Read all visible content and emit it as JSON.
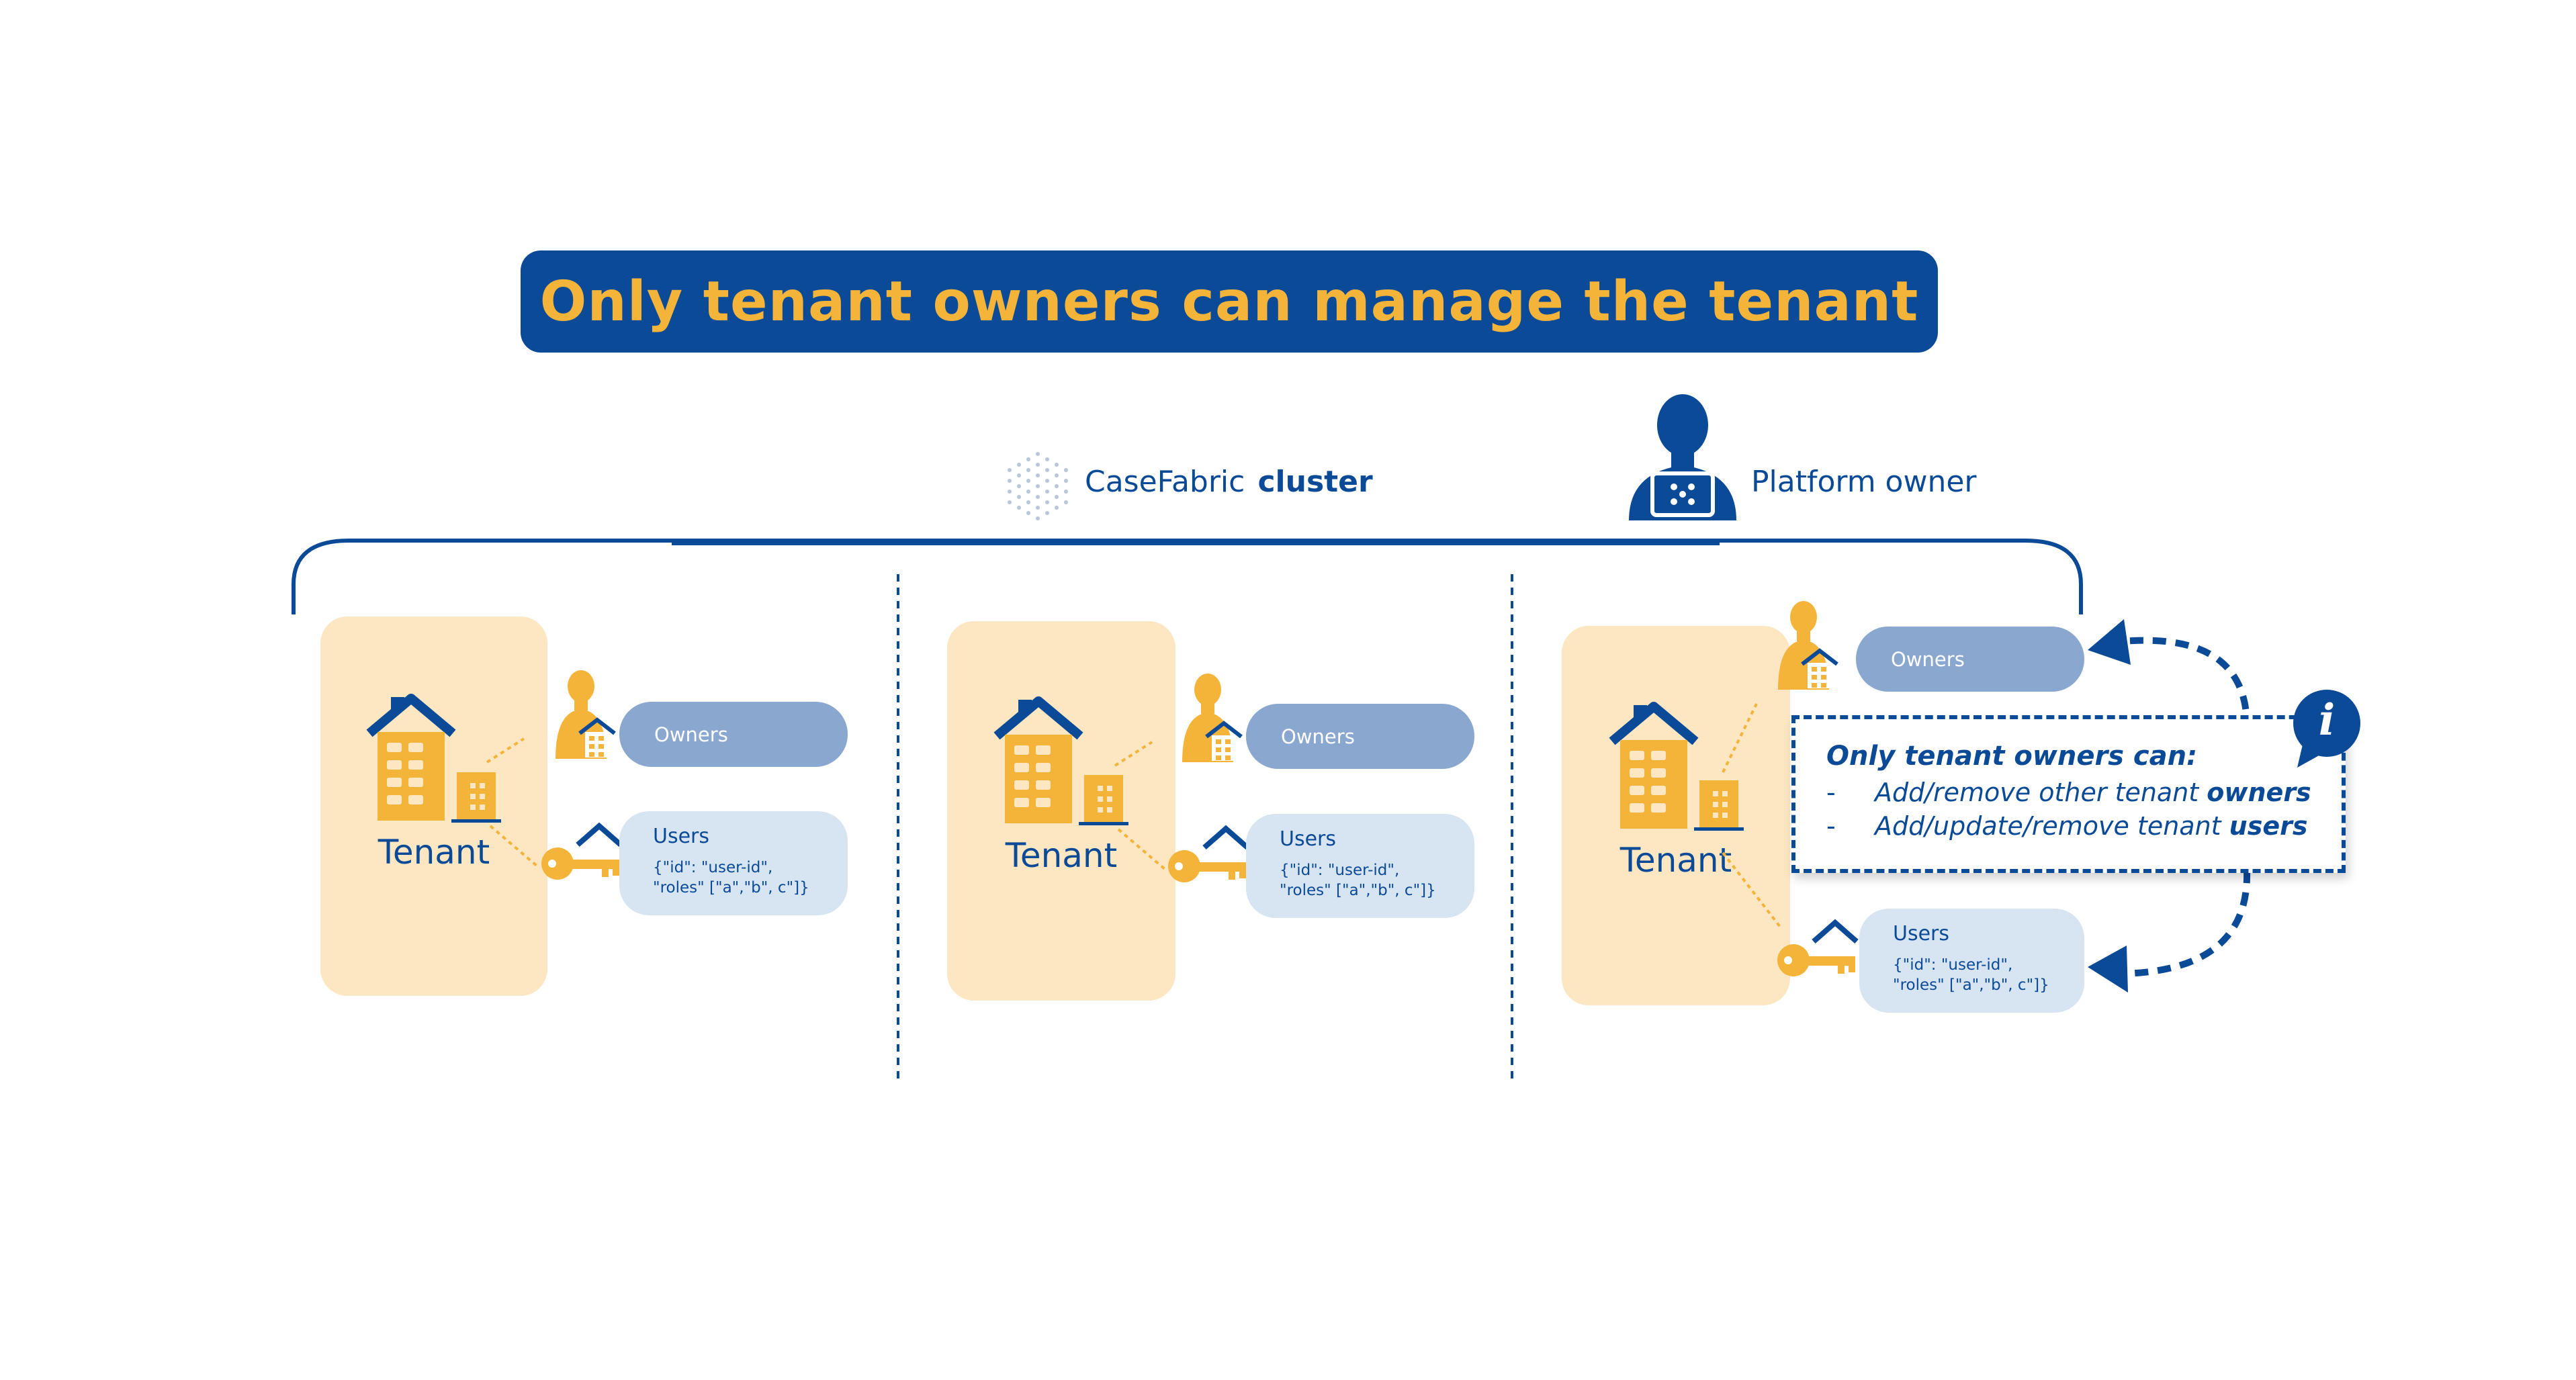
{
  "title": "Only tenant owners can manage the tenant",
  "cluster": {
    "brand": "CaseFabric",
    "word": "cluster"
  },
  "platform_owner": {
    "label": "Platform owner"
  },
  "tenants": [
    {
      "label": "Tenant",
      "owners_label": "Owners",
      "users_label": "Users",
      "users_json_line1": "{\"id\": \"user-id\",",
      "users_json_line2": "\"roles\" [\"a\",\"b\", c\"]}"
    },
    {
      "label": "Tenant",
      "owners_label": "Owners",
      "users_label": "Users",
      "users_json_line1": "{\"id\": \"user-id\",",
      "users_json_line2": "\"roles\" [\"a\",\"b\", c\"]}"
    },
    {
      "label": "Tenant",
      "owners_label": "Owners",
      "users_label": "Users",
      "users_json_line1": "{\"id\": \"user-id\",",
      "users_json_line2": "\"roles\" [\"a\",\"b\", c\"]}"
    }
  ],
  "info": {
    "heading": "Only tenant owners can:",
    "items": [
      {
        "bullet": "-",
        "text": "Add/remove other tenant ",
        "bold": "owners"
      },
      {
        "bullet": "-",
        "text": "Add/update/remove tenant ",
        "bold": "users"
      }
    ],
    "icon_letter": "i"
  },
  "colors": {
    "brand_blue": "#0b4a96",
    "accent_yellow": "#f4b43a",
    "tenant_bg": "#fde7c2",
    "owners_pill": "#8aa8cf",
    "users_pill": "#d7e5f3"
  }
}
